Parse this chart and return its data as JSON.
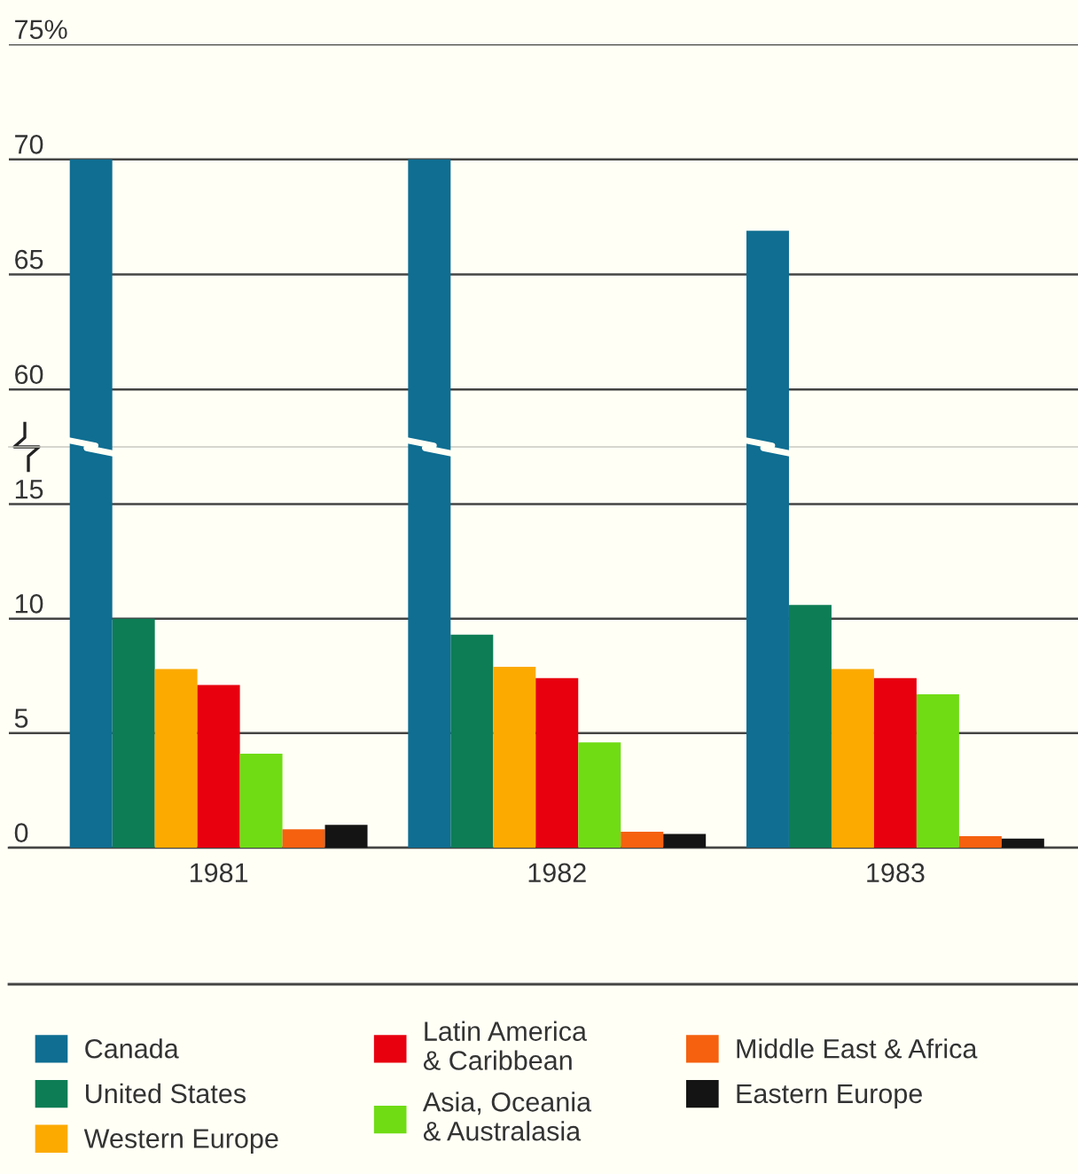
{
  "chart_data": [
    {
      "type": "bar",
      "categories": [
        "1981",
        "1982",
        "1983"
      ],
      "ylim": [
        57.5,
        75
      ],
      "yticks": [
        60,
        65,
        70,
        {
          "value": 75,
          "label": "75%"
        }
      ],
      "grid": "y",
      "tick_labels": "y",
      "series": [
        {
          "name": "Canada",
          "color": "#0f6e92",
          "values": [
            70,
            70,
            66.9
          ]
        }
      ]
    },
    {
      "type": "bar",
      "categories": [
        "1981",
        "1982",
        "1983"
      ],
      "ylim": [
        0,
        17.5
      ],
      "yticks": [
        0,
        5,
        10,
        15
      ],
      "grid": "y",
      "legend": "bottom",
      "series": [
        {
          "name": "United States",
          "color": "#0d7d55",
          "values": [
            10,
            9.3,
            10.6
          ]
        },
        {
          "name": "Western Europe",
          "color": "#fcaa00",
          "values": [
            7.8,
            7.9,
            7.8
          ]
        },
        {
          "name": "Latin America\n& Caribbean",
          "color": "#e8000f",
          "values": [
            7.1,
            7.4,
            7.4
          ]
        },
        {
          "name": "Asia, Oceania\n& Australasia",
          "color": "#6fdc14",
          "values": [
            4.1,
            4.6,
            6.7
          ]
        },
        {
          "name": "Middle East & Africa",
          "color": "#f5610f",
          "values": [
            0.8,
            0.7,
            0.5
          ]
        },
        {
          "name": "Eastern Europe",
          "color": "#141414",
          "values": [
            1.0,
            0.6,
            0.4
          ]
        }
      ]
    }
  ]
}
